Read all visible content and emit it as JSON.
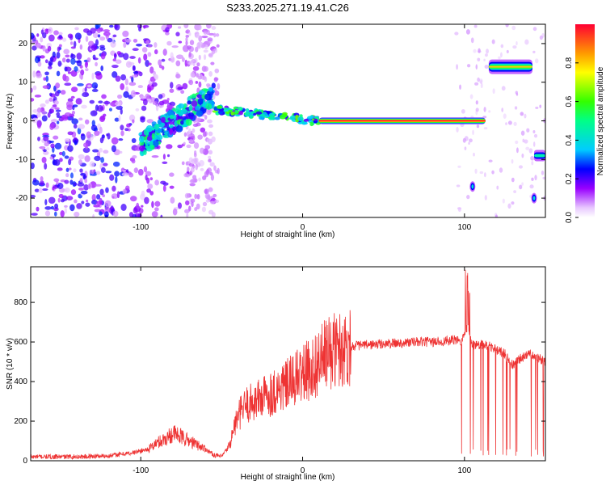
{
  "title": "S233.2025.271.19.41.C26",
  "chart_data": [
    {
      "type": "heatmap",
      "name": "spectrogram",
      "xlabel": "Height of straight line (km)",
      "ylabel": "Frequency (Hz)",
      "xlim": [
        -168,
        150
      ],
      "ylim": [
        -25,
        25
      ],
      "xticks": [
        -100,
        0,
        100
      ],
      "xtick_labels": [
        "-100",
        "0",
        "100"
      ],
      "yticks": [
        -20,
        -10,
        0,
        10,
        20
      ],
      "ytick_labels": [
        "-20",
        "-10",
        "0",
        "10",
        "20"
      ],
      "colorbar": {
        "label": "Normalized spectral amplitude",
        "range": [
          0,
          1
        ],
        "ticks": [
          0.0,
          0.2,
          0.4,
          0.6,
          0.8
        ],
        "tick_labels": [
          "0.0",
          "0.2",
          "0.4",
          "0.6",
          "0.8"
        ]
      },
      "features": [
        {
          "segment": "noise",
          "x": [
            -168,
            -55
          ],
          "freq": [
            -25,
            25
          ],
          "amplitude": 0.15
        },
        {
          "segment": "rising track",
          "x": [
            -100,
            -55
          ],
          "freq_start": -6,
          "freq_end": 7,
          "amplitude": 0.4
        },
        {
          "segment": "track",
          "x": [
            -55,
            10
          ],
          "freq_start": 3,
          "freq_end": 0,
          "amplitude": 0.5
        },
        {
          "segment": "carrier",
          "x": [
            10,
            113
          ],
          "freq": 0,
          "amplitude": 1.0
        },
        {
          "segment": "offset track",
          "x": [
            115,
            142
          ],
          "freq": 14,
          "amplitude": 0.8
        },
        {
          "segment": "tail",
          "x": [
            143,
            150
          ],
          "freq": -9,
          "amplitude": 0.5
        }
      ]
    },
    {
      "type": "line",
      "name": "snr",
      "xlabel": "Height of straight line (km)",
      "ylabel": "SNR (10 * v/v)",
      "xlim": [
        -168,
        150
      ],
      "ylim": [
        0,
        980
      ],
      "xticks": [
        -100,
        0,
        100
      ],
      "xtick_labels": [
        "-100",
        "0",
        "100"
      ],
      "yticks": [
        0,
        200,
        400,
        600,
        800
      ],
      "ytick_labels": [
        "0",
        "200",
        "400",
        "600",
        "800"
      ],
      "color": "#ee3333",
      "series": [
        {
          "name": "SNR",
          "x": [
            -168,
            -140,
            -120,
            -105,
            -95,
            -90,
            -85,
            -80,
            -75,
            -70,
            -65,
            -60,
            -55,
            -50,
            -45,
            -42,
            -38,
            -35,
            -30,
            -25,
            -20,
            -15,
            -10,
            -5,
            0,
            5,
            10,
            15,
            20,
            25,
            30,
            40,
            50,
            60,
            70,
            80,
            90,
            95,
            98,
            100,
            102,
            104,
            106,
            110,
            115,
            120,
            125,
            128,
            130,
            135,
            140,
            145,
            150
          ],
          "values": [
            20,
            20,
            25,
            40,
            60,
            90,
            110,
            140,
            120,
            100,
            80,
            60,
            30,
            20,
            80,
            180,
            250,
            280,
            300,
            320,
            340,
            360,
            380,
            410,
            440,
            460,
            500,
            540,
            560,
            570,
            580,
            585,
            590,
            595,
            600,
            600,
            605,
            610,
            600,
            640,
            680,
            600,
            580,
            590,
            580,
            560,
            540,
            500,
            480,
            520,
            540,
            520,
            500
          ]
        }
      ]
    }
  ]
}
